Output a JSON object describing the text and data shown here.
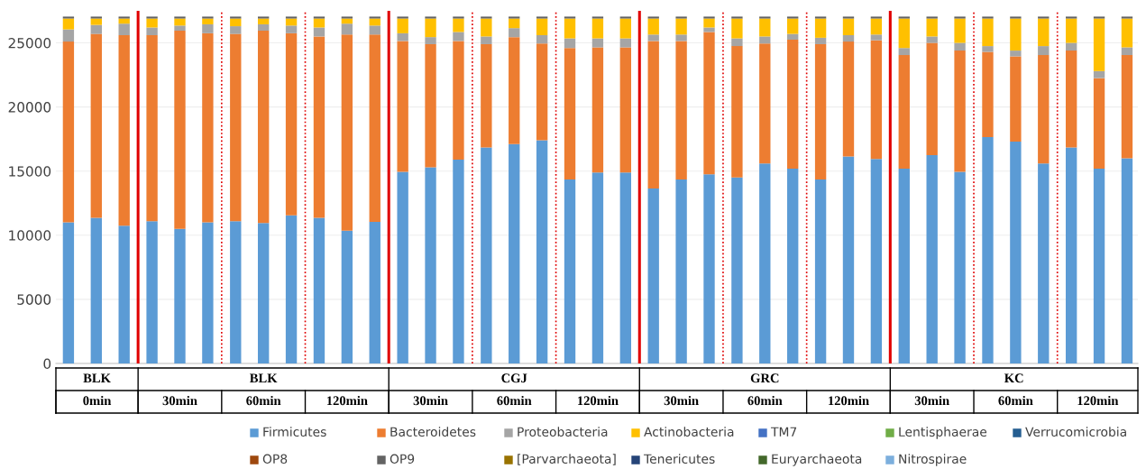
{
  "chart_data": {
    "type": "bar",
    "stacked": true,
    "categories": [
      null,
      null,
      null,
      null,
      null,
      null,
      null,
      null,
      null,
      null,
      null,
      null,
      null,
      null,
      null,
      null,
      null,
      null,
      null,
      null,
      null,
      null,
      null,
      null,
      null,
      null,
      null,
      null,
      null,
      null,
      null,
      null,
      null,
      null,
      null,
      null,
      null,
      null,
      null
    ],
    "series": [
      {
        "name": "Firmicutes",
        "color": "#5b9bd5",
        "values": [
          11000,
          11350,
          10750,
          11100,
          10500,
          11000,
          11100,
          10950,
          11550,
          11350,
          10350,
          11050,
          14950,
          15300,
          15900,
          16850,
          17100,
          17400,
          14350,
          14900,
          14900,
          13650,
          14350,
          14750,
          14500,
          15600,
          15200,
          14350,
          16150,
          15950,
          15200,
          16250,
          14950,
          17650,
          17300,
          15600,
          16850,
          15200,
          16000
        ]
      },
      {
        "name": "Bacteroidetes",
        "color": "#ed7d31",
        "values": [
          14100,
          14350,
          14850,
          14500,
          15450,
          14750,
          14600,
          15000,
          14200,
          14150,
          15300,
          14600,
          10200,
          9600,
          9250,
          8050,
          8350,
          7550,
          10250,
          9750,
          9750,
          11500,
          10800,
          11100,
          10250,
          9350,
          10050,
          10550,
          8950,
          9250,
          8850,
          8750,
          9450,
          6650,
          6650,
          8450,
          7550,
          7050,
          8050
        ]
      },
      {
        "name": "Proteobacteria",
        "color": "#a5a5a5",
        "values": [
          950,
          700,
          900,
          600,
          400,
          700,
          600,
          500,
          600,
          700,
          850,
          700,
          600,
          550,
          700,
          600,
          700,
          650,
          750,
          700,
          700,
          500,
          500,
          350,
          600,
          550,
          450,
          500,
          500,
          450,
          550,
          500,
          600,
          450,
          450,
          700,
          600,
          550,
          600
        ]
      },
      {
        "name": "Actinobacteria",
        "color": "#ffc000",
        "values": [
          850,
          500,
          400,
          700,
          550,
          450,
          600,
          450,
          550,
          700,
          400,
          550,
          1150,
          1450,
          1050,
          1400,
          750,
          1300,
          1550,
          1550,
          1550,
          1250,
          1250,
          700,
          1550,
          1400,
          1200,
          1500,
          1300,
          1250,
          2300,
          1400,
          1900,
          2150,
          2500,
          2150,
          1900,
          4100,
          2250
        ]
      },
      {
        "name": "TM7",
        "color": "#4472c4",
        "values": [
          null,
          null,
          null,
          null,
          null,
          null,
          null,
          null,
          null,
          null,
          null,
          null,
          null,
          null,
          null,
          null,
          null,
          null,
          null,
          null,
          null,
          null,
          null,
          null,
          null,
          null,
          null,
          null,
          null,
          null,
          null,
          null,
          null,
          null,
          null,
          null,
          null,
          null,
          null
        ]
      },
      {
        "name": "Lentisphaerae",
        "color": "#70ad47",
        "values": [
          null,
          null,
          null,
          null,
          null,
          null,
          null,
          null,
          null,
          null,
          null,
          null,
          null,
          null,
          null,
          null,
          null,
          null,
          null,
          null,
          null,
          null,
          null,
          null,
          null,
          null,
          null,
          null,
          null,
          null,
          null,
          null,
          null,
          null,
          null,
          null,
          null,
          null,
          null
        ]
      },
      {
        "name": "Verrucomicrobia",
        "color": "#255e91",
        "values": [
          null,
          null,
          null,
          null,
          null,
          null,
          null,
          null,
          null,
          null,
          null,
          null,
          null,
          null,
          null,
          null,
          null,
          null,
          null,
          null,
          null,
          null,
          null,
          null,
          null,
          null,
          null,
          null,
          null,
          null,
          null,
          null,
          null,
          null,
          null,
          null,
          null,
          null,
          null
        ]
      },
      {
        "name": "OP8",
        "color": "#9e480e",
        "values": [
          null,
          null,
          null,
          null,
          null,
          null,
          null,
          null,
          null,
          null,
          null,
          null,
          null,
          null,
          null,
          null,
          null,
          null,
          null,
          null,
          null,
          null,
          null,
          null,
          null,
          null,
          null,
          null,
          null,
          null,
          null,
          null,
          null,
          null,
          null,
          null,
          null,
          null,
          null
        ]
      },
      {
        "name": "OP9",
        "color": "#636363",
        "values": [
          150,
          150,
          150,
          150,
          150,
          150,
          150,
          150,
          150,
          150,
          150,
          150,
          150,
          150,
          150,
          150,
          150,
          150,
          150,
          150,
          150,
          150,
          150,
          150,
          150,
          150,
          150,
          150,
          150,
          150,
          150,
          150,
          150,
          150,
          150,
          150,
          150,
          150,
          150
        ]
      },
      {
        "name": "[Parvarchaeota]",
        "color": "#997300",
        "values": [
          null,
          null,
          null,
          null,
          null,
          null,
          null,
          null,
          null,
          null,
          null,
          null,
          null,
          null,
          null,
          null,
          null,
          null,
          null,
          null,
          null,
          null,
          null,
          null,
          null,
          null,
          null,
          null,
          null,
          null,
          null,
          null,
          null,
          null,
          null,
          null,
          null,
          null,
          null
        ]
      },
      {
        "name": "Tenericutes",
        "color": "#264478",
        "values": [
          null,
          null,
          null,
          null,
          null,
          null,
          null,
          null,
          null,
          null,
          null,
          null,
          null,
          null,
          null,
          null,
          null,
          null,
          null,
          null,
          null,
          null,
          null,
          null,
          null,
          null,
          null,
          null,
          null,
          null,
          null,
          null,
          null,
          null,
          null,
          null,
          null,
          null,
          null
        ]
      },
      {
        "name": "Euryarchaeota",
        "color": "#43682b",
        "values": [
          null,
          null,
          null,
          null,
          null,
          null,
          null,
          null,
          null,
          null,
          null,
          null,
          null,
          null,
          null,
          null,
          null,
          null,
          null,
          null,
          null,
          null,
          null,
          null,
          null,
          null,
          null,
          null,
          null,
          null,
          null,
          null,
          null,
          null,
          null,
          null,
          null,
          null,
          null
        ]
      },
      {
        "name": "Nitrospirae",
        "color": "#7cafdd",
        "values": [
          null,
          null,
          null,
          null,
          null,
          null,
          null,
          null,
          null,
          null,
          null,
          null,
          null,
          null,
          null,
          null,
          null,
          null,
          null,
          null,
          null,
          null,
          null,
          null,
          null,
          null,
          null,
          null,
          null,
          null,
          null,
          null,
          null,
          null,
          null,
          null,
          null,
          null,
          null
        ]
      }
    ],
    "ylim": [
      0,
      27500
    ],
    "yticks": [
      0,
      5000,
      10000,
      15000,
      20000,
      25000
    ],
    "grid": "y",
    "legend": "bottom",
    "annotations": [
      "BLK",
      "BLK",
      "CGJ",
      "GRC",
      "KC",
      "0min",
      "30min",
      "60min",
      "120min",
      "30min",
      "60min",
      "120min",
      "30min",
      "60min",
      "120min",
      "30min",
      "60min",
      "120min"
    ]
  }
}
